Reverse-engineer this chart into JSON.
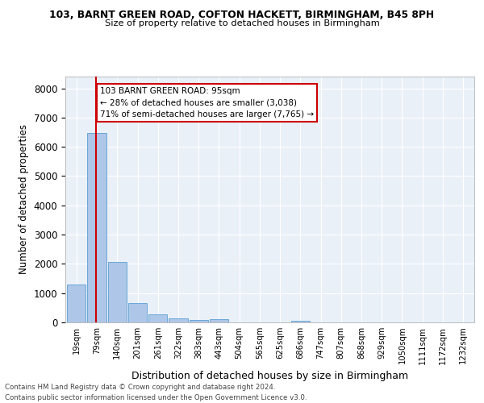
{
  "title1": "103, BARNT GREEN ROAD, COFTON HACKETT, BIRMINGHAM, B45 8PH",
  "title2": "Size of property relative to detached houses in Birmingham",
  "xlabel": "Distribution of detached houses by size in Birmingham",
  "ylabel": "Number of detached properties",
  "bar_labels": [
    "19sqm",
    "79sqm",
    "140sqm",
    "201sqm",
    "261sqm",
    "322sqm",
    "383sqm",
    "443sqm",
    "504sqm",
    "565sqm",
    "625sqm",
    "686sqm",
    "747sqm",
    "807sqm",
    "868sqm",
    "929sqm",
    "1050sqm",
    "1111sqm",
    "1172sqm",
    "1232sqm"
  ],
  "bar_values": [
    1300,
    6480,
    2060,
    650,
    280,
    130,
    80,
    100,
    0,
    0,
    0,
    60,
    0,
    0,
    0,
    0,
    0,
    0,
    0,
    0
  ],
  "bar_color": "#aec6e8",
  "bar_edge_color": "#5a9fd4",
  "property_line_x": 1.0,
  "annotation_title": "103 BARNT GREEN ROAD: 95sqm",
  "annotation_line1": "← 28% of detached houses are smaller (3,038)",
  "annotation_line2": "71% of semi-detached houses are larger (7,765) →",
  "annotation_box_color": "#ffffff",
  "annotation_box_edge": "#cc0000",
  "red_line_color": "#cc0000",
  "ylim": [
    0,
    8400
  ],
  "yticks": [
    0,
    1000,
    2000,
    3000,
    4000,
    5000,
    6000,
    7000,
    8000
  ],
  "footer1": "Contains HM Land Registry data © Crown copyright and database right 2024.",
  "footer2": "Contains public sector information licensed under the Open Government Licence v3.0.",
  "plot_bg_color": "#eaf0f8"
}
